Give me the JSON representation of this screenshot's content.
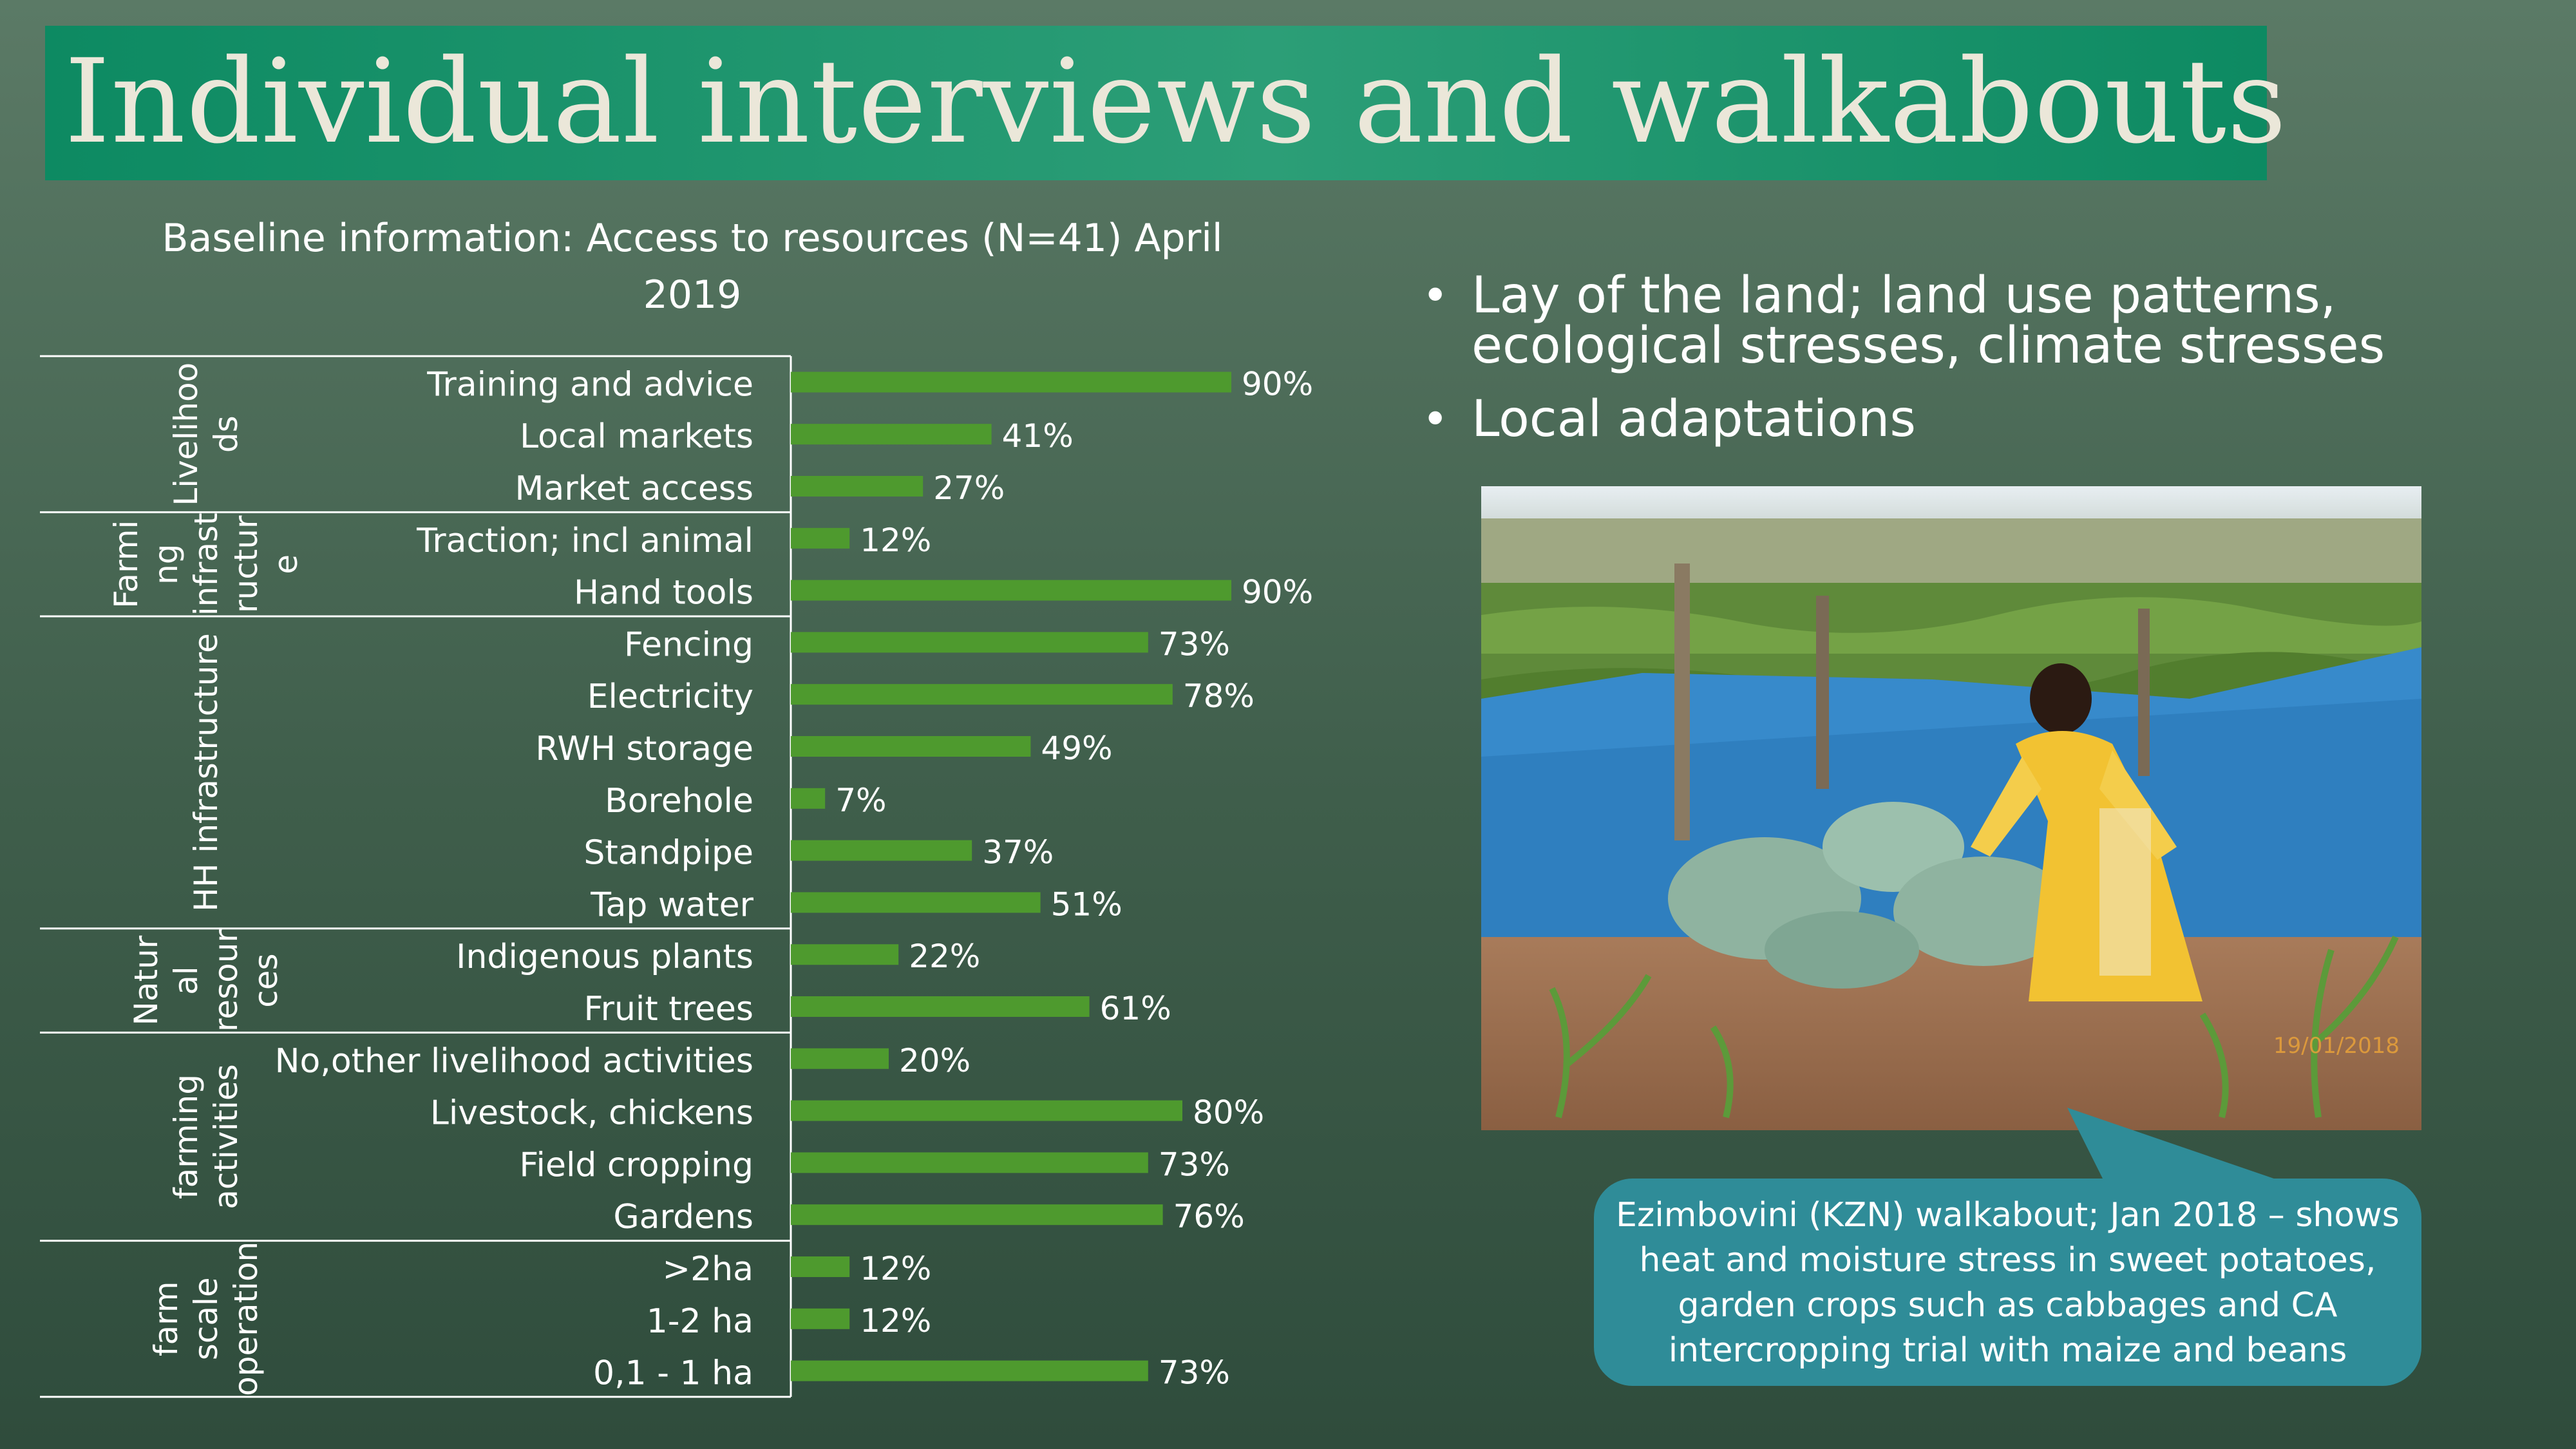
{
  "slide": {
    "title": "Individual interviews and walkabouts"
  },
  "bullets": [
    "Lay of the land; land use patterns, ecological stresses, climate stresses",
    "Local adaptations"
  ],
  "photo": {
    "date_stamp": "19/01/2018"
  },
  "callout": {
    "text": "Ezimbovini (KZN) walkabout; Jan 2018 – shows heat and moisture stress in sweet potatoes, garden crops such as cabbages and CA intercropping trial with maize and beans"
  },
  "colors": {
    "bar": "#4e9a2e",
    "title_band": "#0d8a62",
    "callout": "#2f8c98",
    "text": "#ffffff"
  },
  "chart_data": {
    "type": "bar",
    "orientation": "horizontal",
    "title": "Baseline information: Access to resources (N=41) April 2019",
    "value_suffix": "%",
    "xlim": [
      0,
      100
    ],
    "grid": false,
    "legend": "none",
    "groups": [
      {
        "label": "Livelihoods",
        "label_lines": [
          "Livelihoo",
          "ds"
        ],
        "categories": [
          "Training and advice",
          "Local markets",
          "Market access"
        ],
        "values": [
          90,
          41,
          27
        ]
      },
      {
        "label": "Farming infrastructure",
        "label_lines": [
          "Farmi",
          "ng",
          "infrast",
          "ructur",
          "e"
        ],
        "categories": [
          "Traction; incl animal",
          "Hand tools"
        ],
        "values": [
          12,
          90
        ]
      },
      {
        "label": "HH infrastructure",
        "label_lines": [
          "HH infrastructure"
        ],
        "categories": [
          "Fencing",
          "Electricity",
          "RWH storage",
          "Borehole",
          "Standpipe",
          "Tap water"
        ],
        "values": [
          73,
          78,
          49,
          7,
          37,
          51
        ]
      },
      {
        "label": "Natural resources",
        "label_lines": [
          "Natur",
          "al",
          "resour",
          "ces"
        ],
        "categories": [
          "Indigenous plants",
          "Fruit trees"
        ],
        "values": [
          22,
          61
        ]
      },
      {
        "label": "farming activities",
        "label_lines": [
          "farming",
          "activities"
        ],
        "categories": [
          "No,other livelihood activities",
          "Livestock, chickens",
          "Field cropping",
          "Gardens"
        ],
        "values": [
          20,
          80,
          73,
          76
        ]
      },
      {
        "label": "farm scale operation",
        "label_lines": [
          "farm",
          "scale",
          "operation"
        ],
        "categories": [
          ">2ha",
          "1-2 ha",
          "0,1 - 1 ha"
        ],
        "values": [
          12,
          12,
          73
        ]
      }
    ]
  }
}
